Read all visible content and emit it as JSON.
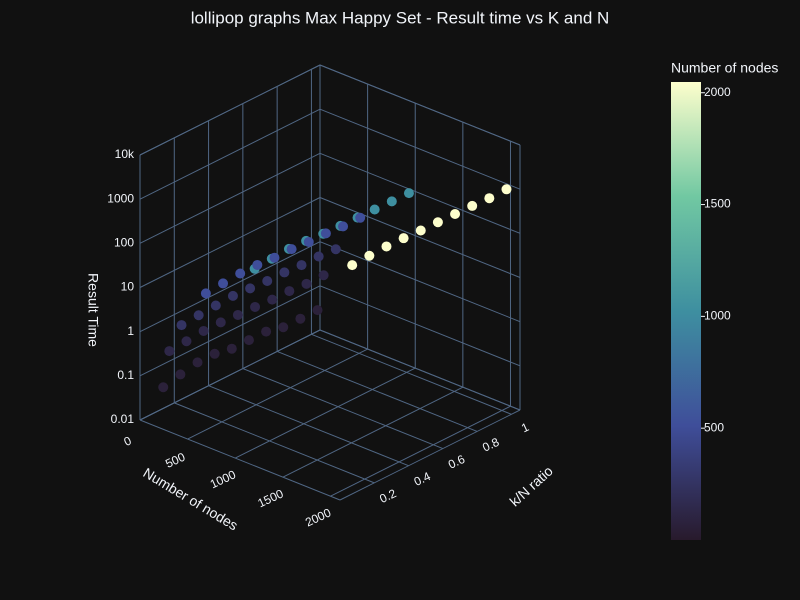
{
  "chart_data": {
    "type": "scatter3d",
    "title": "lollipop graphs Max Happy Set - Result time vs K and N",
    "x_label": "Number of nodes",
    "y_label": "k/N ratio",
    "z_label": "Result Time",
    "x": [
      2048,
      2048,
      2048,
      2048,
      2048,
      2048,
      2048,
      2048,
      2048,
      2048,
      1024,
      1024,
      1024,
      1024,
      1024,
      1024,
      1024,
      1024,
      1024,
      1024,
      512,
      512,
      512,
      512,
      512,
      512,
      512,
      512,
      512,
      512,
      256,
      256,
      256,
      256,
      256,
      256,
      256,
      256,
      256,
      256,
      128,
      128,
      128,
      128,
      128,
      128,
      128,
      128,
      128,
      128,
      64,
      64,
      64,
      64,
      64,
      64,
      64,
      64,
      64,
      64
    ],
    "y": [
      0.1,
      0.2,
      0.3,
      0.4,
      0.5,
      0.6,
      0.7,
      0.8,
      0.9,
      1,
      0.1,
      0.2,
      0.3,
      0.4,
      0.5,
      0.6,
      0.7,
      0.8,
      0.9,
      1,
      0.1,
      0.2,
      0.3,
      0.4,
      0.5,
      0.6,
      0.7,
      0.8,
      0.9,
      1,
      0.1,
      0.2,
      0.3,
      0.4,
      0.5,
      0.6,
      0.7,
      0.8,
      0.9,
      1,
      0.1,
      0.2,
      0.3,
      0.4,
      0.5,
      0.6,
      0.7,
      0.8,
      0.9,
      1,
      0.1,
      0.2,
      0.3,
      0.4,
      0.5,
      0.6,
      0.7,
      0.8,
      0.9,
      1
    ],
    "z": [
      1200,
      1250,
      1300,
      1280,
      1220,
      1200,
      1180,
      1150,
      1100,
      1120,
      130,
      140,
      150,
      145,
      135,
      130,
      128,
      125,
      122,
      120,
      13,
      14,
      15,
      15,
      14,
      14,
      13,
      13,
      12,
      12,
      1.5,
      1.6,
      1.7,
      1.8,
      1.7,
      1.6,
      1.6,
      1.5,
      1.5,
      1.4,
      0.3,
      0.32,
      0.35,
      0.35,
      0.33,
      0.32,
      0.3,
      0.3,
      0.28,
      0.28,
      0.04,
      0.05,
      0.06,
      0.06,
      0.05,
      0.05,
      0.05,
      0.04,
      0.04,
      0.04
    ],
    "xlim": [
      0,
      2100
    ],
    "xticks": [
      0,
      500,
      1000,
      1500,
      2000
    ],
    "ylim": [
      0,
      1.05
    ],
    "yticks": [
      0.2,
      0.4,
      0.6,
      0.8,
      1
    ],
    "zlim": [
      0.01,
      10000
    ],
    "zscale": "log",
    "zticks": [
      0.01,
      0.1,
      1,
      10,
      100,
      1000,
      {
        "value": 10000,
        "label": "10k"
      }
    ],
    "colorbar_title": "Number of nodes",
    "cmin": 0,
    "cmax": 2048,
    "colorbar_ticks": [
      500,
      1000,
      1500,
      2000
    ],
    "colorscale": [
      [
        0,
        "#281a2c"
      ],
      [
        0.25,
        "#3f4e9a"
      ],
      [
        0.5,
        "#3e8fa0"
      ],
      [
        0.75,
        "#71c8a2"
      ],
      [
        1,
        "#fdfecc"
      ]
    ],
    "grid": true
  }
}
